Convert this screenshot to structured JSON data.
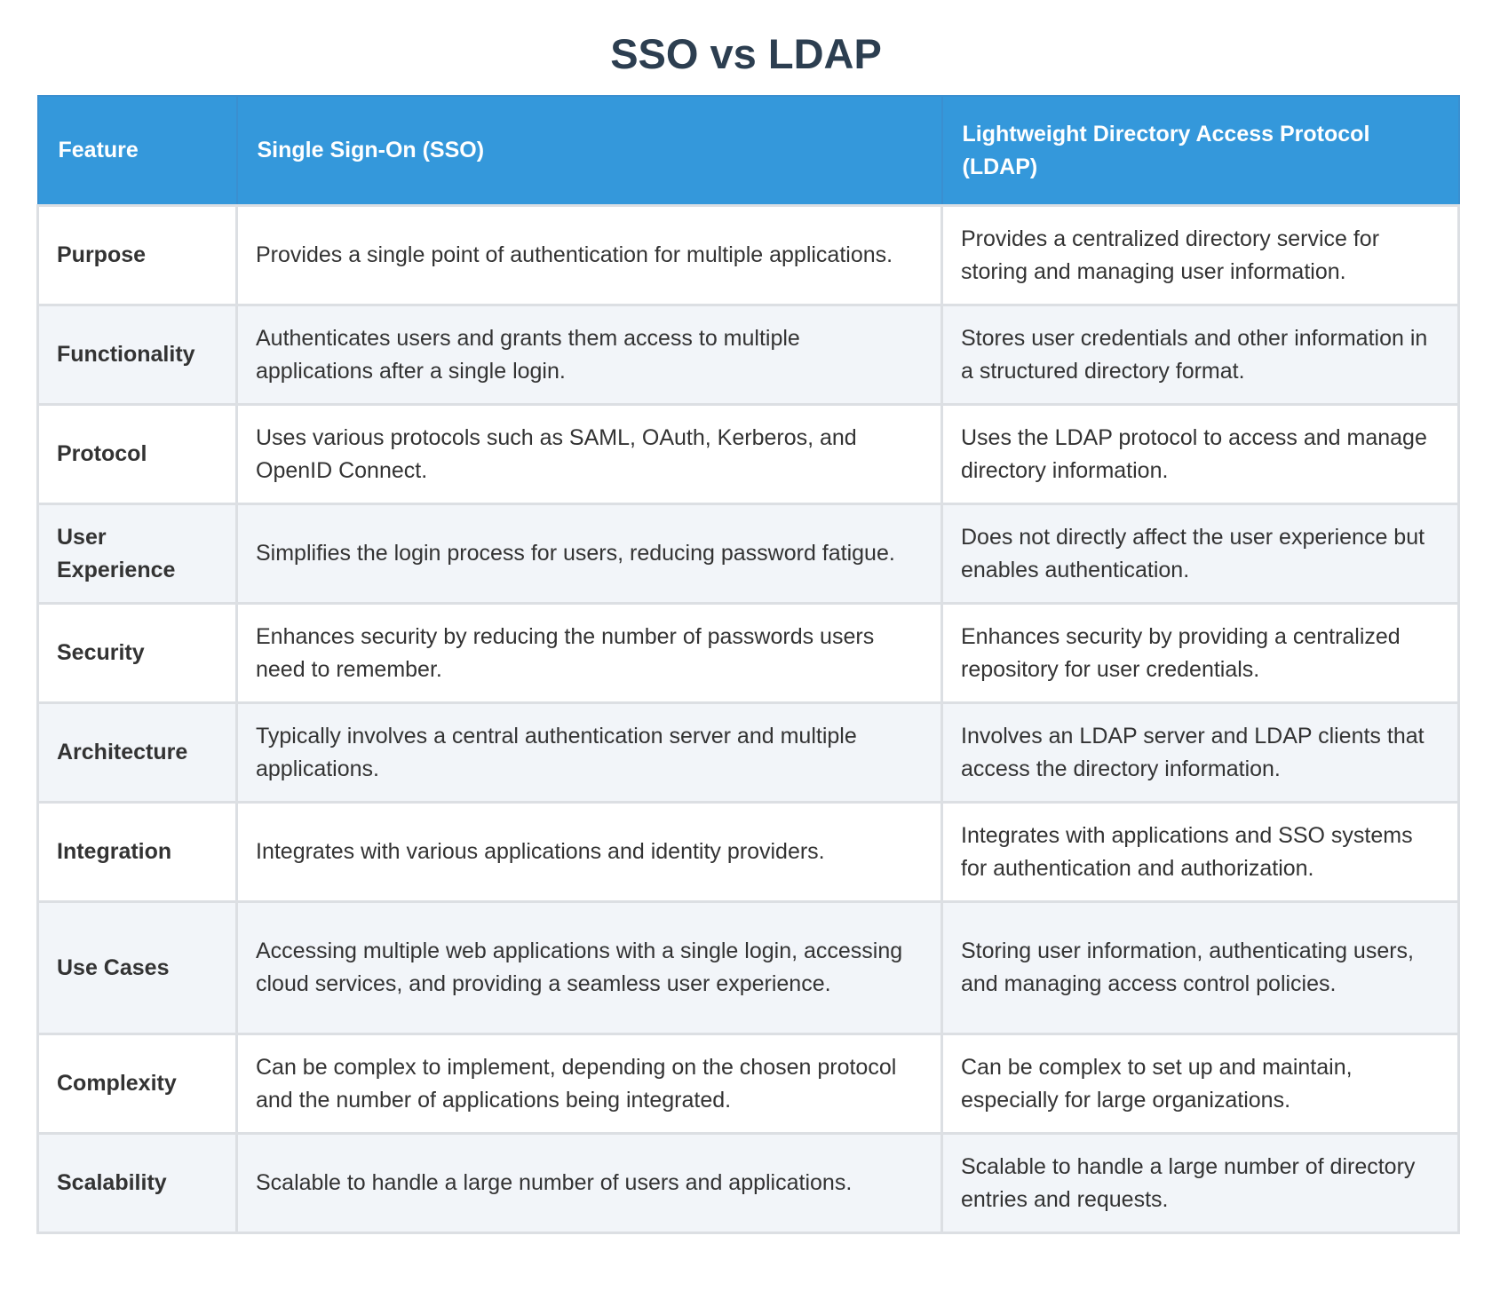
{
  "title": "SSO vs LDAP",
  "colors": {
    "header_bg": "#3498db",
    "title": "#2c3e50",
    "row_alt": "#f2f5f9",
    "border": "#dcdfe3"
  },
  "table": {
    "headers": [
      "Feature",
      "Single Sign-On (SSO)",
      "Lightweight Directory Access Protocol (LDAP)"
    ],
    "rows": [
      {
        "feature": "Purpose",
        "sso": "Provides a single point of authentication for multiple applications.",
        "ldap": "Provides a centralized directory service for storing and managing user information."
      },
      {
        "feature": "Functionality",
        "sso": "Authenticates users and grants them access to multiple applications after a single login.",
        "ldap": "Stores user credentials and other information in a structured directory format."
      },
      {
        "feature": "Protocol",
        "sso": "Uses various protocols such as SAML, OAuth, Kerberos, and OpenID Connect.",
        "ldap": "Uses the LDAP protocol to access and manage directory information."
      },
      {
        "feature": "User Experience",
        "sso": "Simplifies the login process for users, reducing password fatigue.",
        "ldap": "Does not directly affect the user experience but enables authentication."
      },
      {
        "feature": "Security",
        "sso": "Enhances security by reducing the number of passwords users need to remember.",
        "ldap": "Enhances security by providing a centralized repository for user credentials."
      },
      {
        "feature": "Architecture",
        "sso": "Typically involves a central authentication server and multiple applications.",
        "ldap": "Involves an LDAP server and LDAP clients that access the directory information."
      },
      {
        "feature": "Integration",
        "sso": "Integrates with various applications and identity providers.",
        "ldap": "Integrates with applications and SSO systems for authentication and authorization."
      },
      {
        "feature": "Use Cases",
        "sso": "Accessing multiple web applications with a single login, accessing cloud services, and providing a seamless user experience.",
        "ldap": "Storing user information, authenticating users, and managing access control policies."
      },
      {
        "feature": "Complexity",
        "sso": "Can be complex to implement, depending on the chosen protocol and the number of applications being integrated.",
        "ldap": "Can be complex to set up and maintain, especially for large organizations."
      },
      {
        "feature": "Scalability",
        "sso": "Scalable to handle a large number of users and applications.",
        "ldap": "Scalable to handle a large number of directory entries and requests."
      }
    ]
  }
}
